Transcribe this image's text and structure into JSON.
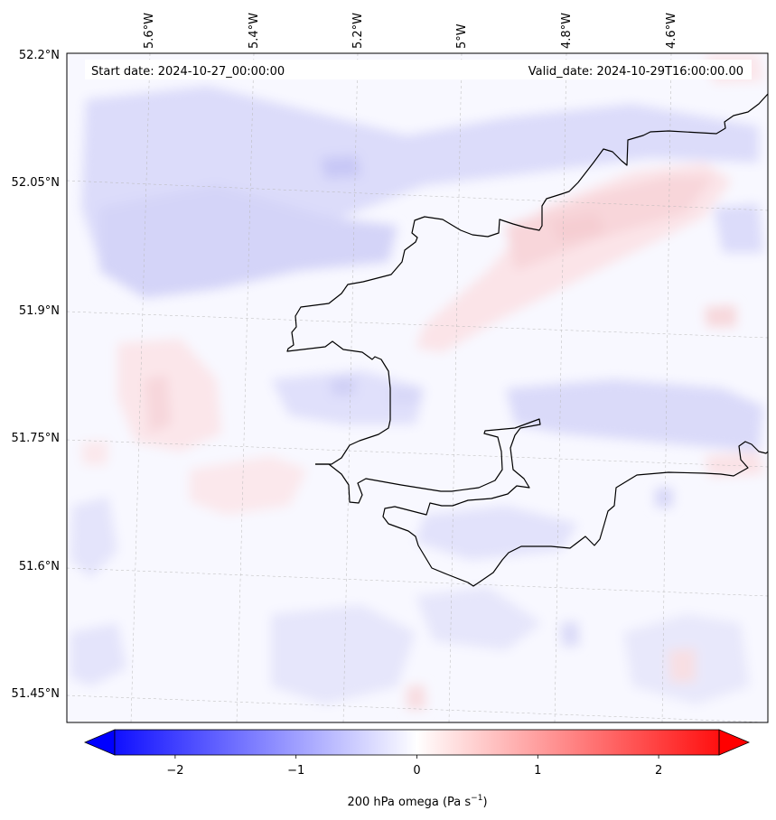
{
  "header": {
    "start_label": "Start date: 2024-10-27_00:00:00",
    "valid_label": "Valid_date: 2024-10-29T16:00:00.00"
  },
  "map": {
    "region": "South-west Wales coastline (Pembrokeshire)",
    "variable": "200 hPa omega",
    "lon_ticks": [
      "5.6°W",
      "5.4°W",
      "5.2°W",
      "5°W",
      "4.8°W",
      "4.6°W"
    ],
    "lat_ticks": [
      "52.2°N",
      "52.05°N",
      "51.9°N",
      "51.75°N",
      "51.6°N",
      "51.45°N"
    ],
    "field_colors": {
      "negative": "#0000ff",
      "neutral": "#ffffff",
      "positive": "#ff0000"
    },
    "coastline_color": "#000000"
  },
  "colorbar": {
    "label_prefix": "200 hPa omega (Pa s",
    "label_exp": "−1",
    "label_suffix": ")",
    "tick_labels": [
      "−2",
      "−1",
      "0",
      "1",
      "2"
    ],
    "ticks": [
      -2,
      -1,
      0,
      1,
      2
    ],
    "range": [
      -2.5,
      2.5
    ],
    "extend": "both"
  }
}
